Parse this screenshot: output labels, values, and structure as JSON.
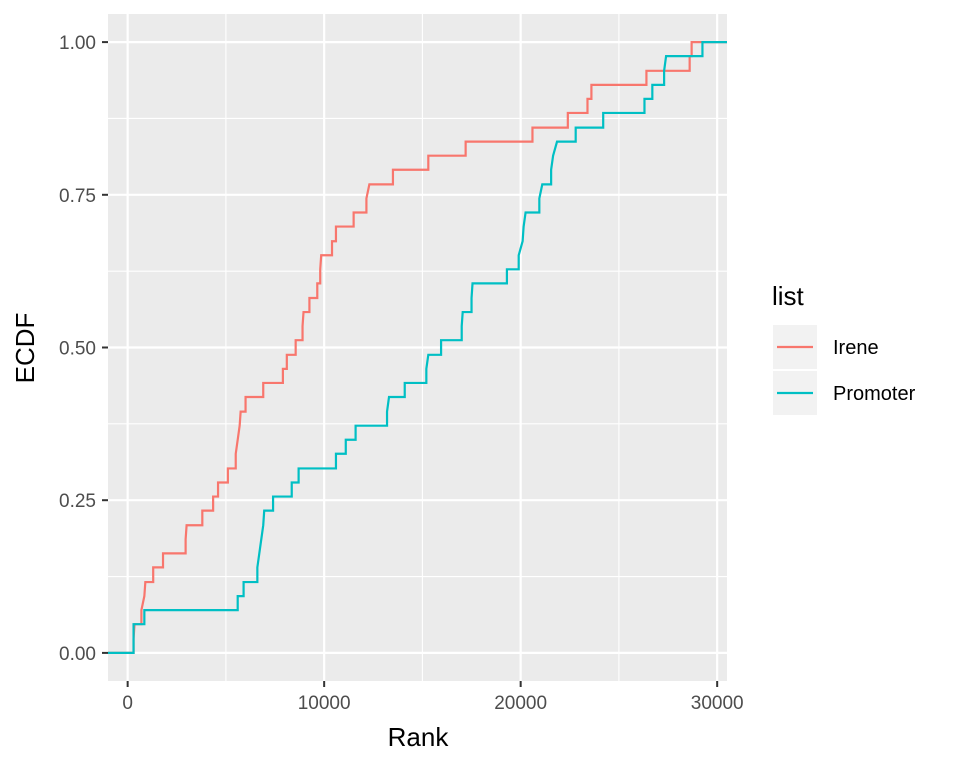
{
  "chart_data": {
    "type": "line",
    "subtype": "step-ecdf",
    "xlabel": "Rank",
    "ylabel": "ECDF",
    "xlim": [
      -1000,
      30500
    ],
    "ylim": [
      -0.046,
      1.046
    ],
    "x_ticks": [
      0,
      10000,
      20000,
      30000
    ],
    "x_tick_labels": [
      "0",
      "10000",
      "20000",
      "30000"
    ],
    "x_minor_ticks": [
      5000,
      15000,
      25000
    ],
    "y_ticks": [
      0,
      0.25,
      0.5,
      0.75,
      1.0
    ],
    "y_tick_labels": [
      "0.00",
      "0.25",
      "0.50",
      "0.75",
      "1.00"
    ],
    "y_minor_ticks": [
      0.125,
      0.375,
      0.625,
      0.875
    ],
    "grid": true,
    "legend": {
      "title": "list",
      "placement": "right"
    },
    "series": [
      {
        "name": "Irene",
        "color": "#F8766D",
        "points": [
          [
            -1000,
            0
          ],
          [
            300,
            0
          ],
          [
            300,
            0.023
          ],
          [
            350,
            0.047
          ],
          [
            700,
            0.047
          ],
          [
            700,
            0.07
          ],
          [
            850,
            0.093
          ],
          [
            900,
            0.116
          ],
          [
            1300,
            0.116
          ],
          [
            1300,
            0.14
          ],
          [
            1800,
            0.14
          ],
          [
            1800,
            0.163
          ],
          [
            2950,
            0.163
          ],
          [
            2950,
            0.186
          ],
          [
            3000,
            0.209
          ],
          [
            3800,
            0.209
          ],
          [
            3800,
            0.233
          ],
          [
            4350,
            0.233
          ],
          [
            4350,
            0.256
          ],
          [
            4600,
            0.256
          ],
          [
            4600,
            0.279
          ],
          [
            5100,
            0.279
          ],
          [
            5100,
            0.302
          ],
          [
            5500,
            0.302
          ],
          [
            5500,
            0.326
          ],
          [
            5600,
            0.349
          ],
          [
            5700,
            0.372
          ],
          [
            5750,
            0.395
          ],
          [
            6000,
            0.395
          ],
          [
            6000,
            0.419
          ],
          [
            6900,
            0.419
          ],
          [
            6900,
            0.442
          ],
          [
            7900,
            0.442
          ],
          [
            7900,
            0.465
          ],
          [
            8100,
            0.465
          ],
          [
            8100,
            0.488
          ],
          [
            8550,
            0.488
          ],
          [
            8550,
            0.512
          ],
          [
            8900,
            0.512
          ],
          [
            8900,
            0.535
          ],
          [
            8950,
            0.558
          ],
          [
            9250,
            0.558
          ],
          [
            9250,
            0.581
          ],
          [
            9650,
            0.581
          ],
          [
            9650,
            0.605
          ],
          [
            9800,
            0.605
          ],
          [
            9800,
            0.628
          ],
          [
            9850,
            0.651
          ],
          [
            10400,
            0.651
          ],
          [
            10400,
            0.674
          ],
          [
            10600,
            0.674
          ],
          [
            10600,
            0.698
          ],
          [
            11500,
            0.698
          ],
          [
            11500,
            0.721
          ],
          [
            12150,
            0.721
          ],
          [
            12150,
            0.744
          ],
          [
            12300,
            0.767
          ],
          [
            13500,
            0.767
          ],
          [
            13500,
            0.791
          ],
          [
            15300,
            0.791
          ],
          [
            15300,
            0.814
          ],
          [
            17200,
            0.814
          ],
          [
            17200,
            0.837
          ],
          [
            20600,
            0.837
          ],
          [
            20600,
            0.86
          ],
          [
            22400,
            0.86
          ],
          [
            22400,
            0.884
          ],
          [
            23400,
            0.884
          ],
          [
            23400,
            0.907
          ],
          [
            23600,
            0.907
          ],
          [
            23600,
            0.93
          ],
          [
            26400,
            0.93
          ],
          [
            26400,
            0.953
          ],
          [
            28600,
            0.953
          ],
          [
            28600,
            0.977
          ],
          [
            28700,
            0.977
          ],
          [
            28700,
            1.0
          ],
          [
            30500,
            1.0
          ]
        ]
      },
      {
        "name": "Promoter",
        "color": "#00BFC4",
        "points": [
          [
            -1000,
            0
          ],
          [
            300,
            0
          ],
          [
            300,
            0.047
          ],
          [
            850,
            0.047
          ],
          [
            850,
            0.07
          ],
          [
            5600,
            0.07
          ],
          [
            5600,
            0.093
          ],
          [
            5900,
            0.093
          ],
          [
            5900,
            0.116
          ],
          [
            6600,
            0.116
          ],
          [
            6600,
            0.14
          ],
          [
            6700,
            0.163
          ],
          [
            6800,
            0.186
          ],
          [
            6900,
            0.209
          ],
          [
            6950,
            0.233
          ],
          [
            7400,
            0.233
          ],
          [
            7400,
            0.256
          ],
          [
            8350,
            0.256
          ],
          [
            8350,
            0.279
          ],
          [
            8700,
            0.279
          ],
          [
            8700,
            0.302
          ],
          [
            10600,
            0.302
          ],
          [
            10600,
            0.326
          ],
          [
            11100,
            0.326
          ],
          [
            11100,
            0.349
          ],
          [
            11600,
            0.349
          ],
          [
            11600,
            0.372
          ],
          [
            13200,
            0.372
          ],
          [
            13200,
            0.395
          ],
          [
            13300,
            0.419
          ],
          [
            14100,
            0.419
          ],
          [
            14100,
            0.442
          ],
          [
            15200,
            0.442
          ],
          [
            15200,
            0.465
          ],
          [
            15300,
            0.488
          ],
          [
            15950,
            0.488
          ],
          [
            15950,
            0.512
          ],
          [
            17000,
            0.512
          ],
          [
            17000,
            0.535
          ],
          [
            17050,
            0.558
          ],
          [
            17500,
            0.558
          ],
          [
            17500,
            0.581
          ],
          [
            17550,
            0.605
          ],
          [
            19300,
            0.605
          ],
          [
            19300,
            0.628
          ],
          [
            19900,
            0.628
          ],
          [
            19900,
            0.651
          ],
          [
            20100,
            0.674
          ],
          [
            20150,
            0.698
          ],
          [
            20250,
            0.721
          ],
          [
            20950,
            0.721
          ],
          [
            20950,
            0.744
          ],
          [
            21100,
            0.767
          ],
          [
            21550,
            0.767
          ],
          [
            21550,
            0.791
          ],
          [
            21650,
            0.814
          ],
          [
            21850,
            0.837
          ],
          [
            22800,
            0.837
          ],
          [
            22800,
            0.86
          ],
          [
            24200,
            0.86
          ],
          [
            24200,
            0.884
          ],
          [
            26300,
            0.884
          ],
          [
            26300,
            0.907
          ],
          [
            26700,
            0.907
          ],
          [
            26700,
            0.93
          ],
          [
            27300,
            0.93
          ],
          [
            27300,
            0.953
          ],
          [
            27400,
            0.977
          ],
          [
            29250,
            0.977
          ],
          [
            29250,
            1.0
          ],
          [
            30500,
            1.0
          ]
        ]
      }
    ]
  }
}
